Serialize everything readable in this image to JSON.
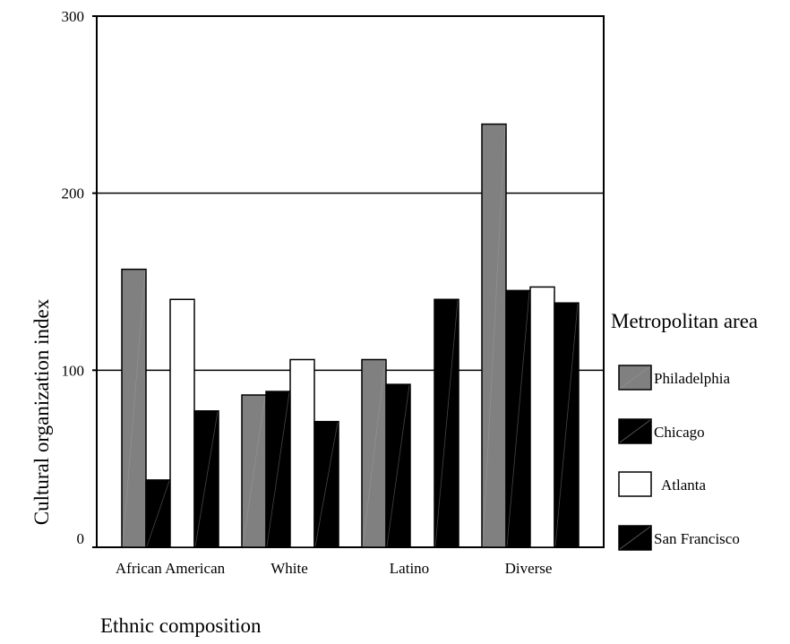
{
  "chart_data": {
    "type": "bar",
    "xlabel": "Ethnic composition",
    "ylabel": "Cultural organization index",
    "ylim": [
      0,
      300
    ],
    "yticks": [
      "0",
      "100",
      "200",
      "300"
    ],
    "grid": "horizontal at 100 and 200",
    "categories": [
      "African American",
      "White",
      "Latino",
      "Diverse"
    ],
    "series": [
      {
        "name": "Philadelphia",
        "color": "#808080",
        "values": [
          157,
          86,
          106,
          239
        ]
      },
      {
        "name": "Chicago",
        "color": "#000000",
        "values": [
          38,
          88,
          92,
          145
        ]
      },
      {
        "name": "Atlanta",
        "color": "#ffffff",
        "values": [
          140,
          106,
          0,
          147
        ]
      },
      {
        "name": "San Francisco",
        "color": "#000000",
        "values": [
          77,
          71,
          140,
          138
        ]
      }
    ],
    "legend": {
      "title": "Metropolitan area",
      "position": "right"
    }
  }
}
